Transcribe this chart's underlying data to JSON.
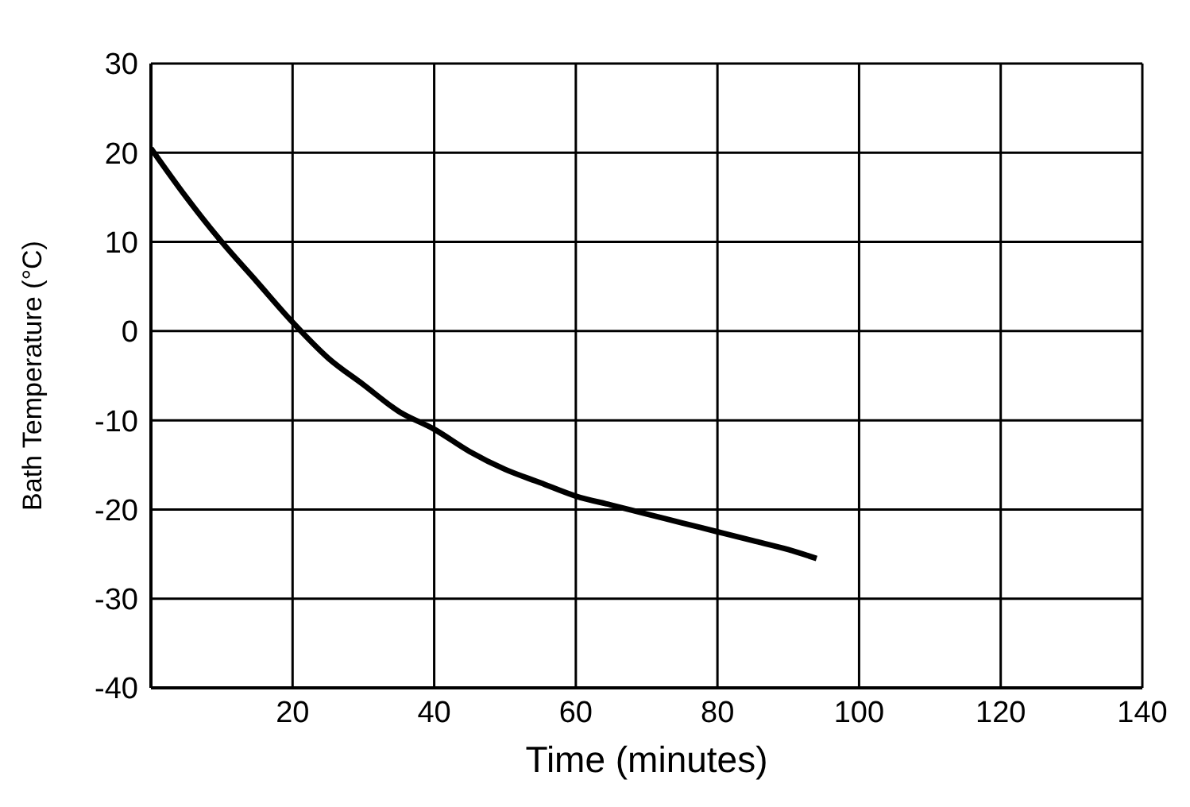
{
  "chart_data": {
    "type": "line",
    "xlabel": "Time (minutes)",
    "ylabel": "Bath Temperature (°C)",
    "x": [
      0,
      5,
      10,
      15,
      20,
      25,
      30,
      35,
      40,
      45,
      50,
      55,
      60,
      65,
      70,
      75,
      80,
      85,
      90,
      94
    ],
    "series": [
      {
        "color": "#000000",
        "values": [
          20.5,
          15,
          10,
          5.5,
          1,
          -3,
          -6,
          -9,
          -11,
          -13.5,
          -15.5,
          -17,
          -18.5,
          -19.5,
          -20.5,
          -21.5,
          -22.5,
          -23.5,
          -24.5,
          -25.5
        ]
      }
    ],
    "xlim": [
      0,
      140
    ],
    "xticks": [
      20,
      40,
      60,
      80,
      100,
      120,
      140
    ],
    "ylim": [
      -40,
      30
    ],
    "yticks": [
      -40,
      -30,
      -20,
      -10,
      0,
      10,
      20,
      30
    ],
    "grid": true,
    "marker": "none",
    "line_style": "solid"
  }
}
